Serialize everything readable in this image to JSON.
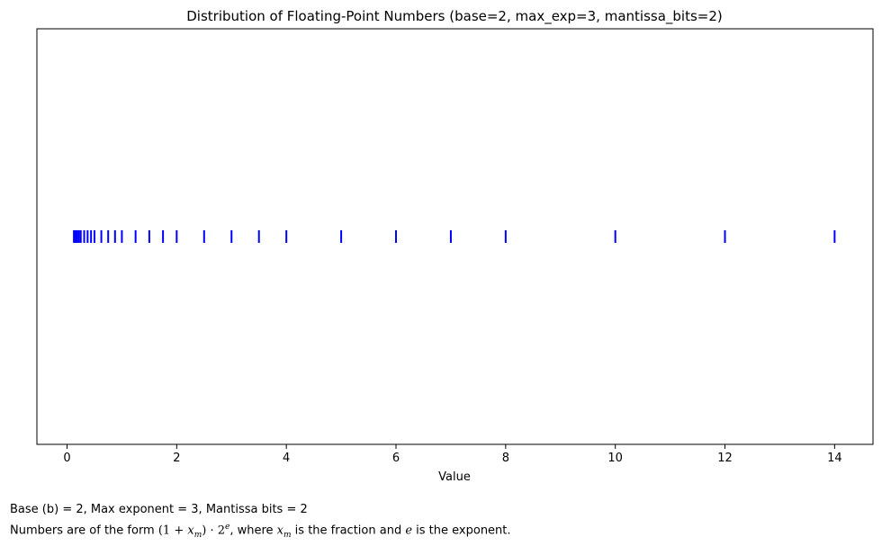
{
  "chart_data": {
    "type": "scatter",
    "marker": "vertical-line",
    "title": "Distribution of Floating-Point Numbers (base=2, max_exp=3, mantissa_bits=2)",
    "xlabel": "Value",
    "ylabel": "",
    "xlim": [
      -0.55,
      14.7
    ],
    "xticks": [
      0,
      2,
      4,
      6,
      8,
      10,
      12,
      14
    ],
    "yticks": [],
    "grid": false,
    "colors": {
      "marker": "#0000ff",
      "axes": "#000000"
    },
    "x": [
      0.125,
      0.15625,
      0.1875,
      0.21875,
      0.25,
      0.3125,
      0.375,
      0.4375,
      0.5,
      0.625,
      0.75,
      0.875,
      1.0,
      1.25,
      1.5,
      1.75,
      2.0,
      2.5,
      3.0,
      3.5,
      4.0,
      5.0,
      6.0,
      7.0,
      8.0,
      10.0,
      12.0,
      14.0
    ],
    "y": 0
  },
  "captions": {
    "line1": "Base (b) = 2, Max exponent = 3, Mantissa bits = 2",
    "line2_prefix": "Numbers are of the form ",
    "line2_formula_open": "(1 + ",
    "line2_formula_var": "x",
    "line2_formula_sub": "m",
    "line2_formula_close": ") · 2",
    "line2_formula_sup": "e",
    "line2_mid1": ", where ",
    "line2_var_x": "x",
    "line2_sub_m": "m",
    "line2_mid2": " is the fraction and ",
    "line2_var_e": "e",
    "line2_suffix": " is the exponent."
  }
}
